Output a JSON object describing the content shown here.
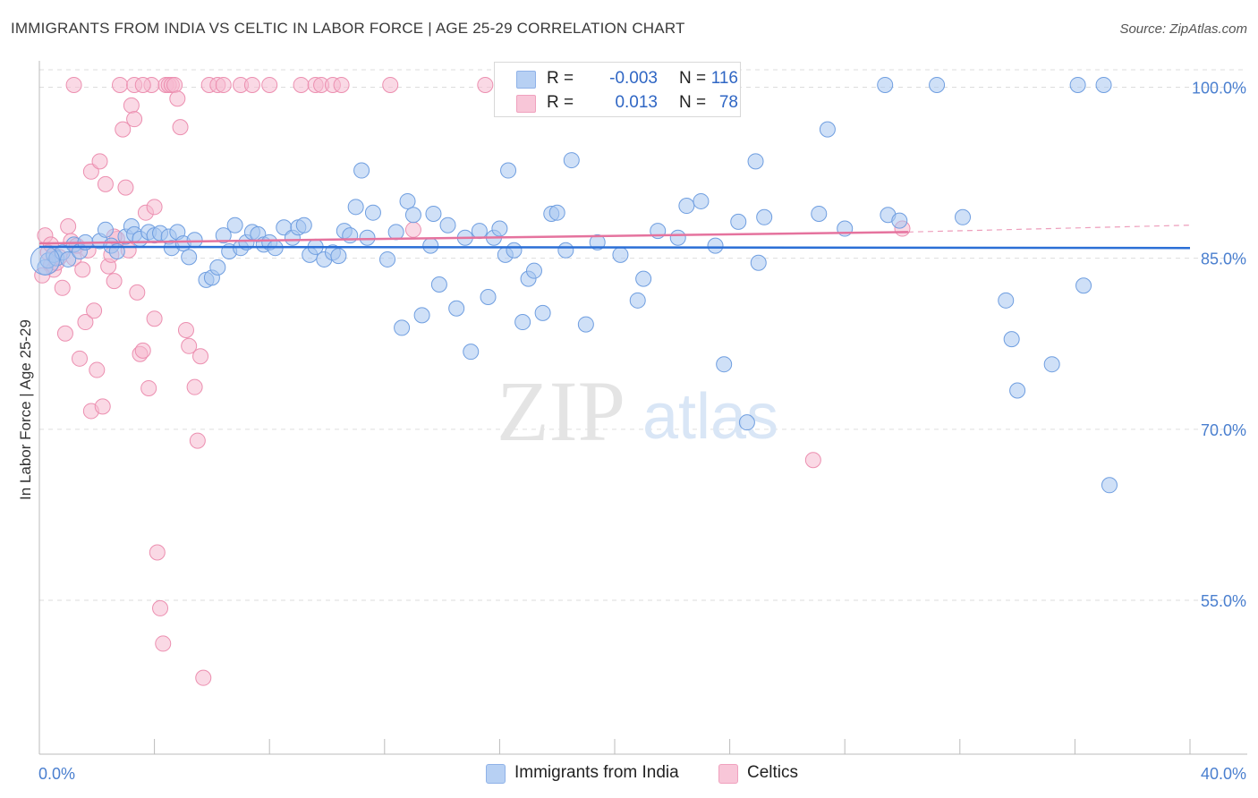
{
  "title": "IMMIGRANTS FROM INDIA VS CELTIC IN LABOR FORCE | AGE 25-29 CORRELATION CHART",
  "source": "Source: ZipAtlas.com",
  "watermark": {
    "zip": "ZIP",
    "atlas": "atlas"
  },
  "colors": {
    "blue_fill": "#a8c6f0",
    "blue_stroke": "#6f9ee0",
    "blue_line": "#2b6fd6",
    "pink_fill": "#f6b9cf",
    "pink_stroke": "#ec8fb0",
    "pink_line": "#e5739e",
    "grid": "#dddddd",
    "tick_label": "#4a7fcf"
  },
  "legend_top": [
    {
      "series": "blue",
      "r_label": "R =",
      "r_value": "-0.003",
      "n_label": "N =",
      "n_value": "116"
    },
    {
      "series": "pink",
      "r_label": "R =",
      "r_value": "0.013",
      "n_label": "N =",
      "n_value": "78"
    }
  ],
  "legend_bottom": [
    "Immigrants from India",
    "Celtics"
  ],
  "chart_data": {
    "type": "scatter",
    "title": "IMMIGRANTS FROM INDIA VS CELTIC IN LABOR FORCE | AGE 25-29 CORRELATION CHART",
    "xlabel": "",
    "ylabel": "In Labor Force | Age 25-29",
    "xlim": [
      0,
      40
    ],
    "ylim": [
      40,
      102
    ],
    "x_tick_labels": [
      "0.0%",
      "40.0%"
    ],
    "y_ticks": [
      55,
      70,
      85,
      100
    ],
    "y_tick_labels": [
      "55.0%",
      "70.0%",
      "85.0%",
      "100.0%"
    ],
    "series": [
      {
        "name": "Immigrants from India",
        "color": "#a8c6f0",
        "trend": {
          "x": [
            0,
            40
          ],
          "y": [
            86.0,
            85.9
          ],
          "style": "solid"
        },
        "points": [
          [
            0.2,
            84.2
          ],
          [
            0.3,
            84.8
          ],
          [
            0.5,
            85.3
          ],
          [
            0.6,
            85.0
          ],
          [
            0.8,
            85.5
          ],
          [
            1.0,
            84.9
          ],
          [
            1.2,
            86.2
          ],
          [
            1.4,
            85.6
          ],
          [
            1.6,
            86.4
          ],
          [
            2.1,
            86.5
          ],
          [
            2.3,
            87.5
          ],
          [
            2.5,
            86.1
          ],
          [
            2.7,
            85.6
          ],
          [
            3.0,
            86.9
          ],
          [
            3.2,
            87.8
          ],
          [
            3.3,
            87.1
          ],
          [
            3.5,
            86.7
          ],
          [
            3.8,
            87.3
          ],
          [
            4.0,
            87.0
          ],
          [
            4.2,
            87.2
          ],
          [
            4.5,
            86.9
          ],
          [
            4.6,
            85.9
          ],
          [
            4.8,
            87.3
          ],
          [
            5.0,
            86.3
          ],
          [
            5.2,
            85.1
          ],
          [
            5.4,
            86.6
          ],
          [
            5.8,
            83.1
          ],
          [
            6.0,
            83.3
          ],
          [
            6.2,
            84.2
          ],
          [
            6.4,
            87.0
          ],
          [
            6.6,
            85.6
          ],
          [
            6.8,
            87.9
          ],
          [
            7.0,
            85.9
          ],
          [
            7.2,
            86.4
          ],
          [
            7.4,
            87.3
          ],
          [
            7.6,
            87.1
          ],
          [
            7.8,
            86.2
          ],
          [
            8.0,
            86.4
          ],
          [
            8.2,
            85.9
          ],
          [
            8.5,
            87.7
          ],
          [
            8.8,
            86.8
          ],
          [
            9.0,
            87.7
          ],
          [
            9.2,
            87.9
          ],
          [
            9.4,
            85.3
          ],
          [
            9.6,
            86.0
          ],
          [
            9.9,
            84.9
          ],
          [
            10.2,
            85.5
          ],
          [
            10.4,
            85.2
          ],
          [
            10.6,
            87.4
          ],
          [
            10.8,
            87.0
          ],
          [
            11.0,
            89.5
          ],
          [
            11.2,
            92.7
          ],
          [
            11.4,
            86.8
          ],
          [
            11.6,
            89.0
          ],
          [
            12.1,
            84.9
          ],
          [
            12.4,
            87.3
          ],
          [
            12.6,
            78.9
          ],
          [
            12.8,
            90.0
          ],
          [
            13.0,
            88.8
          ],
          [
            13.3,
            80.0
          ],
          [
            13.6,
            86.1
          ],
          [
            13.7,
            88.9
          ],
          [
            13.9,
            82.7
          ],
          [
            14.2,
            87.9
          ],
          [
            14.5,
            80.6
          ],
          [
            14.8,
            86.8
          ],
          [
            15.0,
            76.8
          ],
          [
            15.3,
            87.4
          ],
          [
            15.6,
            81.6
          ],
          [
            15.8,
            86.8
          ],
          [
            16.0,
            87.6
          ],
          [
            16.2,
            85.3
          ],
          [
            16.3,
            92.7
          ],
          [
            16.5,
            85.7
          ],
          [
            16.8,
            79.4
          ],
          [
            17.0,
            83.2
          ],
          [
            17.2,
            83.9
          ],
          [
            17.5,
            80.2
          ],
          [
            17.8,
            88.9
          ],
          [
            18.0,
            89.0
          ],
          [
            18.3,
            85.7
          ],
          [
            18.5,
            93.6
          ],
          [
            19.0,
            79.2
          ],
          [
            19.4,
            86.4
          ],
          [
            20.2,
            85.3
          ],
          [
            20.8,
            81.3
          ],
          [
            21.0,
            83.2
          ],
          [
            21.5,
            87.4
          ],
          [
            22.2,
            86.8
          ],
          [
            22.5,
            89.6
          ],
          [
            23.0,
            90.0
          ],
          [
            23.5,
            86.1
          ],
          [
            23.8,
            75.7
          ],
          [
            24.3,
            88.2
          ],
          [
            24.6,
            70.6
          ],
          [
            24.9,
            93.5
          ],
          [
            25.0,
            84.6
          ],
          [
            25.2,
            88.6
          ],
          [
            27.1,
            88.9
          ],
          [
            27.4,
            96.3
          ],
          [
            28.0,
            87.6
          ],
          [
            29.4,
            100.2
          ],
          [
            29.5,
            88.8
          ],
          [
            29.9,
            88.3
          ],
          [
            31.2,
            100.2
          ],
          [
            32.1,
            88.6
          ],
          [
            33.6,
            81.3
          ],
          [
            33.8,
            77.9
          ],
          [
            34.0,
            73.4
          ],
          [
            35.2,
            75.7
          ],
          [
            36.1,
            100.2
          ],
          [
            36.3,
            82.6
          ],
          [
            37.0,
            100.2
          ],
          [
            37.2,
            65.1
          ]
        ]
      },
      {
        "name": "Celtics",
        "color": "#f6b9cf",
        "trend": {
          "x": [
            0,
            30.2
          ],
          "y": [
            86.3,
            87.3
          ],
          "style": "solid",
          "dashed_to": [
            40,
            87.9
          ]
        },
        "points": [
          [
            0.2,
            87.0
          ],
          [
            0.3,
            85.5
          ],
          [
            0.4,
            84.4
          ],
          [
            0.5,
            84.0
          ],
          [
            0.6,
            84.6
          ],
          [
            0.7,
            85.1
          ],
          [
            0.8,
            82.4
          ],
          [
            0.9,
            78.4
          ],
          [
            1.0,
            87.8
          ],
          [
            1.1,
            86.5
          ],
          [
            1.2,
            85.0
          ],
          [
            1.3,
            86.1
          ],
          [
            1.4,
            76.2
          ],
          [
            1.5,
            84.0
          ],
          [
            1.6,
            79.4
          ],
          [
            1.7,
            85.7
          ],
          [
            1.8,
            71.6
          ],
          [
            1.9,
            80.4
          ],
          [
            2.0,
            75.2
          ],
          [
            2.2,
            72.0
          ],
          [
            2.3,
            91.5
          ],
          [
            2.4,
            84.3
          ],
          [
            2.5,
            85.3
          ],
          [
            2.6,
            83.0
          ],
          [
            2.7,
            86.7
          ],
          [
            2.9,
            96.3
          ],
          [
            3.0,
            91.2
          ],
          [
            3.2,
            98.4
          ],
          [
            3.3,
            97.2
          ],
          [
            3.4,
            82.0
          ],
          [
            3.5,
            76.6
          ],
          [
            3.6,
            76.9
          ],
          [
            3.7,
            89.0
          ],
          [
            3.8,
            73.6
          ],
          [
            3.9,
            100.2
          ],
          [
            4.0,
            79.7
          ],
          [
            4.1,
            59.2
          ],
          [
            4.2,
            54.3
          ],
          [
            4.3,
            51.2
          ],
          [
            4.4,
            100.2
          ],
          [
            4.5,
            100.2
          ],
          [
            4.6,
            100.2
          ],
          [
            4.7,
            100.2
          ],
          [
            4.8,
            99.0
          ],
          [
            4.9,
            96.5
          ],
          [
            5.1,
            78.7
          ],
          [
            5.2,
            77.3
          ],
          [
            5.4,
            73.7
          ],
          [
            5.5,
            69.0
          ],
          [
            5.6,
            76.4
          ],
          [
            5.7,
            48.2
          ],
          [
            5.9,
            100.2
          ],
          [
            6.2,
            100.2
          ],
          [
            6.4,
            100.2
          ],
          [
            7.0,
            100.2
          ],
          [
            7.4,
            100.2
          ],
          [
            9.1,
            100.2
          ],
          [
            9.6,
            100.2
          ],
          [
            9.8,
            100.2
          ],
          [
            10.2,
            100.2
          ],
          [
            10.5,
            100.2
          ],
          [
            12.2,
            100.2
          ],
          [
            1.8,
            92.6
          ],
          [
            2.1,
            93.5
          ],
          [
            2.6,
            86.9
          ],
          [
            3.1,
            85.7
          ],
          [
            4.0,
            89.5
          ],
          [
            1.2,
            100.2
          ],
          [
            2.8,
            100.2
          ],
          [
            3.3,
            100.2
          ],
          [
            3.6,
            100.2
          ],
          [
            13.0,
            87.5
          ],
          [
            15.5,
            100.2
          ],
          [
            8.0,
            100.2
          ],
          [
            26.9,
            67.3
          ],
          [
            30.0,
            87.6
          ],
          [
            0.1,
            83.5
          ],
          [
            0.4,
            86.2
          ]
        ]
      }
    ]
  }
}
